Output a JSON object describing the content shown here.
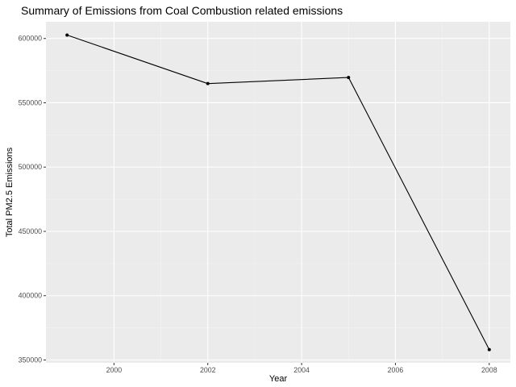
{
  "chart_data": {
    "type": "line",
    "title": "Summary of Emissions from Coal Combustion related emissions",
    "xlabel": "Year",
    "ylabel": "Total PM2.5 Emissions",
    "x": [
      1999,
      2002,
      2005,
      2008
    ],
    "series": [
      {
        "values": [
          602625,
          564940,
          569655,
          358084
        ]
      }
    ],
    "xlim": [
      1998.55,
      2008.45
    ],
    "ylim": [
      347800,
      613000
    ],
    "x_ticks": [
      2000,
      2002,
      2004,
      2006,
      2008
    ],
    "x_tick_labels": [
      "2000",
      "2002",
      "2004",
      "2006",
      "2008"
    ],
    "y_ticks": [
      350000,
      400000,
      450000,
      500000,
      550000,
      600000
    ],
    "y_tick_labels": [
      "350000",
      "400000",
      "450000",
      "500000",
      "550000",
      "600000"
    ],
    "grid": true,
    "legend": "none",
    "colors": {
      "panel_background": "#ebebeb",
      "grid_major": "#ffffff",
      "grid_minor": "#f5f5f5",
      "line": "#000000",
      "point": "#000000",
      "tick_label": "#4d4d4d",
      "tick_mark": "#333333"
    }
  }
}
